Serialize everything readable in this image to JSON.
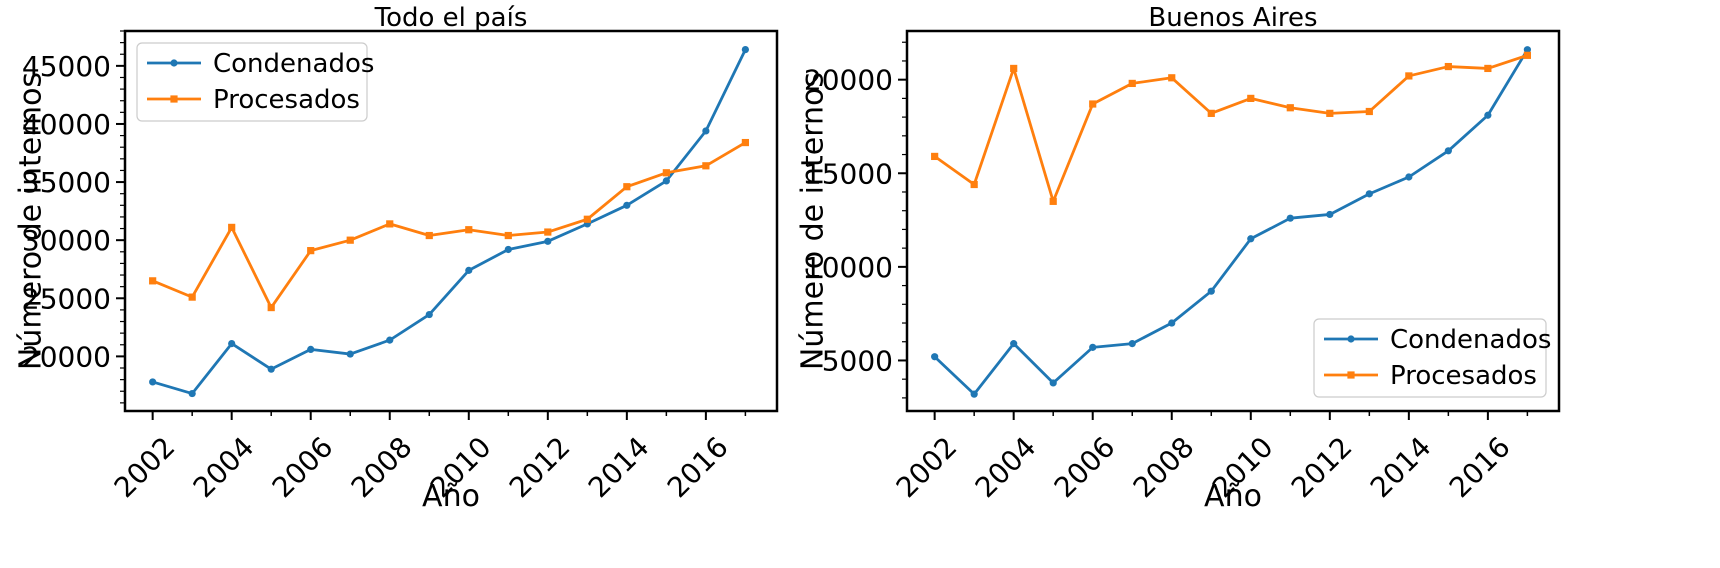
{
  "chart_data": [
    {
      "type": "line",
      "title": "Todo el país",
      "xlabel": "Año",
      "ylabel": "Número de internos",
      "x": [
        2002,
        2003,
        2004,
        2005,
        2006,
        2007,
        2008,
        2009,
        2010,
        2011,
        2012,
        2013,
        2014,
        2015,
        2016,
        2017
      ],
      "xticks": [
        "2002",
        "2004",
        "2006",
        "2008",
        "2010",
        "2012",
        "2014",
        "2016"
      ],
      "yticks": [
        "20000",
        "25000",
        "30000",
        "35000",
        "40000",
        "45000"
      ],
      "xlim": [
        2001.3,
        2017.8
      ],
      "ylim": [
        15300,
        48000
      ],
      "legend_position": "upper left",
      "grid": false,
      "series": [
        {
          "name": "Condenados",
          "color": "#1f77b4",
          "marker": "circle",
          "values": [
            17800,
            16800,
            21100,
            18900,
            20600,
            20200,
            21400,
            23600,
            27400,
            29200,
            29900,
            31400,
            33000,
            35100,
            39400,
            46400
          ]
        },
        {
          "name": "Procesados",
          "color": "#ff7f0e",
          "marker": "square",
          "values": [
            26500,
            25100,
            31100,
            24200,
            29100,
            30000,
            31400,
            30400,
            30900,
            30400,
            30700,
            31800,
            34600,
            35800,
            36400,
            38400
          ]
        }
      ]
    },
    {
      "type": "line",
      "title": "Buenos Aires",
      "xlabel": "Año",
      "ylabel": "Número de internos",
      "x": [
        2002,
        2003,
        2004,
        2005,
        2006,
        2007,
        2008,
        2009,
        2010,
        2011,
        2012,
        2013,
        2014,
        2015,
        2016,
        2017
      ],
      "xticks": [
        "2002",
        "2004",
        "2006",
        "2008",
        "2010",
        "2012",
        "2014",
        "2016"
      ],
      "yticks": [
        "5000",
        "10000",
        "15000",
        "20000"
      ],
      "xlim": [
        2001.3,
        2017.8
      ],
      "ylim": [
        2300,
        22600
      ],
      "legend_position": "lower right",
      "grid": false,
      "series": [
        {
          "name": "Condenados",
          "color": "#1f77b4",
          "marker": "circle",
          "values": [
            5200,
            3200,
            5900,
            3800,
            5700,
            5900,
            7000,
            8700,
            11500,
            12600,
            12800,
            13900,
            14800,
            16200,
            18100,
            21600
          ]
        },
        {
          "name": "Procesados",
          "color": "#ff7f0e",
          "marker": "square",
          "values": [
            15900,
            14400,
            20600,
            13500,
            18700,
            19800,
            20100,
            18200,
            19000,
            18500,
            18200,
            18300,
            20200,
            20700,
            20600,
            21300
          ]
        }
      ]
    }
  ]
}
